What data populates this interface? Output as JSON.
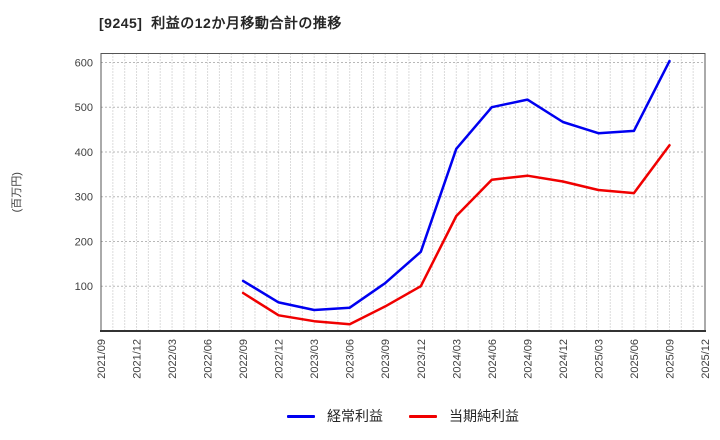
{
  "title": "[9245]  利益の12か月移動合計の推移",
  "chart_data": {
    "type": "line",
    "title": "[9245]  利益の12か月移動合計の推移",
    "xlabel": "",
    "ylabel": "(百万円)",
    "ylim": [
      0,
      620
    ],
    "yticks": [
      100,
      200,
      300,
      400,
      500,
      600
    ],
    "grid": "dotted gray; vertical minor gridlines monthly, horizontal lines at each ytick",
    "legend_position": "bottom-center",
    "categories": [
      "2021/09",
      "2021/12",
      "2022/03",
      "2022/06",
      "2022/09",
      "2022/12",
      "2023/03",
      "2023/06",
      "2023/09",
      "2023/12",
      "2024/03",
      "2024/06",
      "2024/09",
      "2024/12",
      "2025/03",
      "2025/06",
      "2025/09",
      "2025/12"
    ],
    "series": [
      {
        "id": "ordinary-profit",
        "name": "経常利益",
        "color": "#0000f0",
        "values": [
          null,
          null,
          null,
          null,
          112,
          64,
          47,
          52,
          107,
          177,
          407,
          500,
          517,
          467,
          442,
          447,
          603,
          null
        ]
      },
      {
        "id": "net-income",
        "name": "当期純利益",
        "color": "#f00000",
        "values": [
          null,
          null,
          null,
          null,
          85,
          35,
          22,
          15,
          55,
          100,
          257,
          338,
          347,
          334,
          315,
          308,
          415,
          null
        ]
      }
    ]
  },
  "colors": {
    "title_text": "#262626",
    "axis_text": "#404040",
    "frame": "#555555",
    "axis_bottom": "#333333",
    "grid": "#b8b8b8"
  }
}
